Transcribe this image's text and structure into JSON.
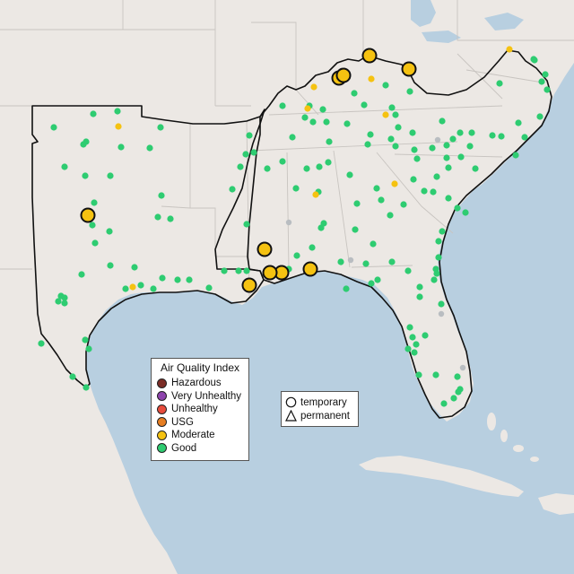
{
  "colors": {
    "water": "#b8cfe0",
    "land": "#ece8e4",
    "good": "#2ecc71",
    "moderate": "#f5c211",
    "usg": "#e67e22",
    "unhealthy": "#e74c3c",
    "very_unhealthy": "#8e44ad",
    "hazardous": "#7b2d26"
  },
  "aqi_legend": {
    "title": "Air Quality Index",
    "items": [
      {
        "label": "Hazardous",
        "color": "#7b2d26"
      },
      {
        "label": "Very Unhealthy",
        "color": "#8e44ad"
      },
      {
        "label": "Unhealthy",
        "color": "#e74c3c"
      },
      {
        "label": "USG",
        "color": "#e67e22"
      },
      {
        "label": "Moderate",
        "color": "#f5c211"
      },
      {
        "label": "Good",
        "color": "#2ecc71"
      }
    ]
  },
  "type_legend": {
    "temporary": "temporary",
    "permanent": "permanent"
  }
}
